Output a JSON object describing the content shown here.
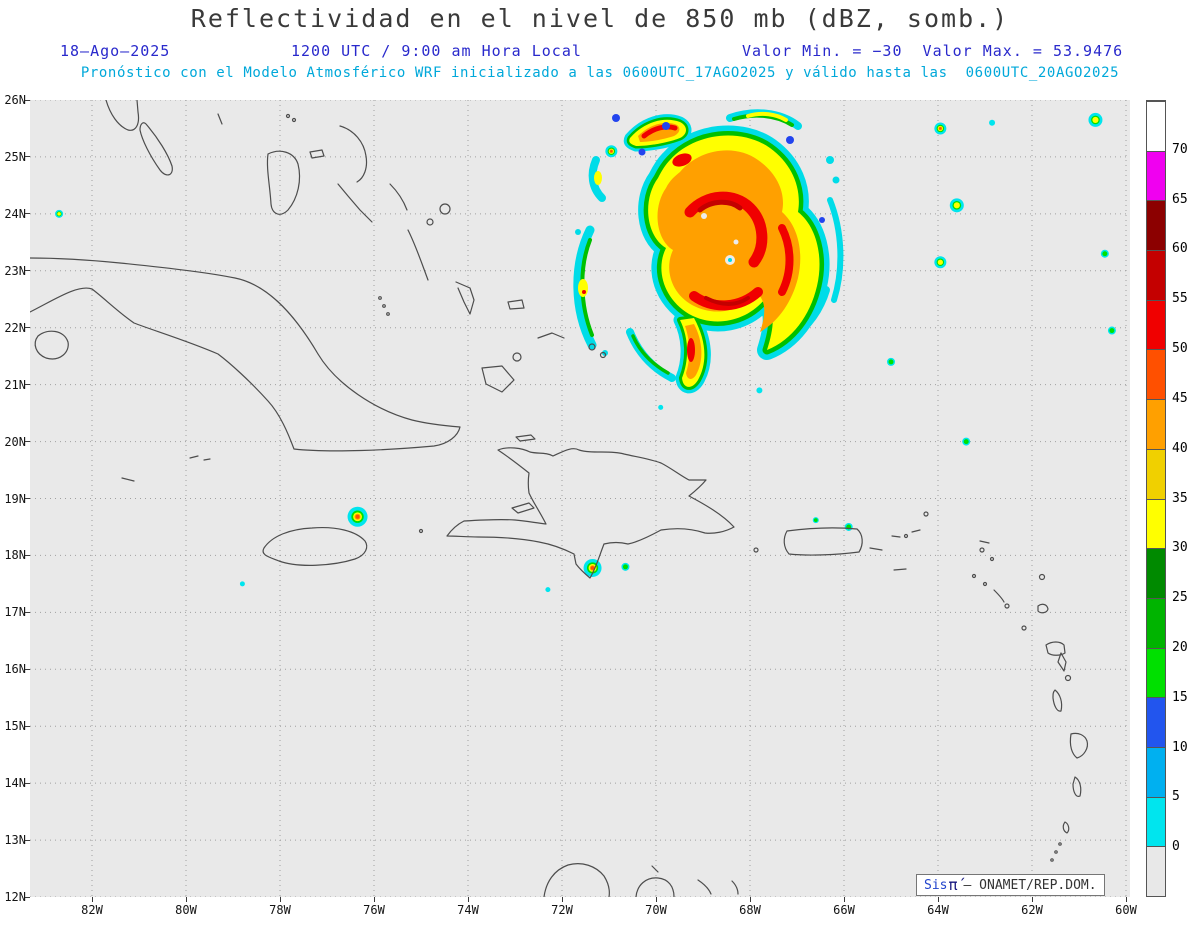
{
  "title": "Reflectividad en el nivel de 850 mb (dBZ, somb.)",
  "header": {
    "date": "18–Ago–2025",
    "time_label": "1200 UTC / 9:00 am Hora Local",
    "minmax_label": "Valor Min. = −30  Valor Max. = 53.9476",
    "forecast_label": "Pronóstico con el Modelo Atmosférico WRF inicializado a las 0600UTC_17AGO2025 y válido hasta las  0600UTC_20AGO2025"
  },
  "branding": {
    "brand": "Sis",
    "symbol": "π́",
    "org": "— ONAMET/REP.DOM."
  },
  "colors": {
    "header_blue": "#2929cc",
    "header_cyan": "#00a8da",
    "title_gray": "#3a3a3a",
    "map_background": "#e9e9e9",
    "grid": "#a0a0a0",
    "coastline": "#4d4d4d"
  },
  "chart_data": {
    "type": "heatmap",
    "title": "Reflectividad en el nivel de 850 mb (dBZ, somb.)",
    "units": "dBZ",
    "level_mb": 850,
    "model": "WRF",
    "valid_date": "18-Ago-2025",
    "valid_time": "1200 UTC / 9:00 am Hora Local",
    "init_time": "0600UTC_17AGO2025",
    "valid_until": "0600UTC_20AGO2025",
    "value_min": -30,
    "value_max": 53.9476,
    "lat_range": [
      12,
      26
    ],
    "lon_range_w": [
      83.3,
      59.9
    ],
    "lat_ticks": [
      "26N",
      "25N",
      "24N",
      "23N",
      "22N",
      "21N",
      "20N",
      "19N",
      "18N",
      "17N",
      "16N",
      "15N",
      "14N",
      "13N",
      "12N"
    ],
    "lon_ticks": [
      "82W",
      "80W",
      "78W",
      "76W",
      "74W",
      "72W",
      "70W",
      "68W",
      "66W",
      "64W",
      "62W",
      "60W"
    ],
    "colorbar": {
      "labels": [
        0,
        5,
        10,
        15,
        20,
        25,
        30,
        35,
        40,
        45,
        50,
        55,
        60,
        65,
        70
      ],
      "segment_colors_bottom_to_top": [
        "#e8e8e8",
        "#00e5ee",
        "#00b0f0",
        "#2255ee",
        "#00e000",
        "#00b400",
        "#008a00",
        "#ffff00",
        "#f0d000",
        "#ffa000",
        "#ff5000",
        "#f00000",
        "#c40000",
        "#8c0000",
        "#f000f0",
        "#ffffff"
      ]
    },
    "features": {
      "storm": {
        "name": "tropical-cyclone",
        "center_lat": 23.4,
        "center_lon_w": 68.6,
        "max_dbz": 53.9476
      },
      "cells": [
        {
          "lon_w": 76.35,
          "lat": 18.68,
          "r": 10,
          "max_dbz": 50
        },
        {
          "lon_w": 71.35,
          "lat": 17.78,
          "r": 9,
          "max_dbz": 50
        },
        {
          "lon_w": 70.65,
          "lat": 17.8,
          "r": 4,
          "max_dbz": 20
        },
        {
          "lon_w": 66.6,
          "lat": 18.62,
          "r": 3,
          "max_dbz": 20
        },
        {
          "lon_w": 65.9,
          "lat": 18.5,
          "r": 4,
          "max_dbz": 25
        },
        {
          "lon_w": 63.95,
          "lat": 25.5,
          "r": 6,
          "max_dbz": 50
        },
        {
          "lon_w": 63.6,
          "lat": 24.15,
          "r": 7,
          "max_dbz": 40
        },
        {
          "lon_w": 63.95,
          "lat": 23.15,
          "r": 6,
          "max_dbz": 35
        },
        {
          "lon_w": 60.65,
          "lat": 25.65,
          "r": 7,
          "max_dbz": 40
        },
        {
          "lon_w": 60.45,
          "lat": 23.3,
          "r": 4,
          "max_dbz": 20
        },
        {
          "lon_w": 60.3,
          "lat": 21.95,
          "r": 4,
          "max_dbz": 25
        },
        {
          "lon_w": 63.4,
          "lat": 20.0,
          "r": 4,
          "max_dbz": 20
        },
        {
          "lon_w": 65.0,
          "lat": 21.4,
          "r": 4,
          "max_dbz": 30
        },
        {
          "lon_w": 82.7,
          "lat": 24.0,
          "r": 4,
          "max_dbz": 35
        },
        {
          "lon_w": 78.8,
          "lat": 17.5,
          "r": 2.5,
          "max_dbz": 5
        },
        {
          "lon_w": 72.3,
          "lat": 17.4,
          "r": 2.5,
          "max_dbz": 5
        },
        {
          "lon_w": 70.95,
          "lat": 25.1,
          "r": 6,
          "max_dbz": 50
        },
        {
          "lon_w": 62.85,
          "lat": 25.6,
          "r": 3,
          "max_dbz": 10
        },
        {
          "lon_w": 67.8,
          "lat": 20.9,
          "r": 3,
          "max_dbz": 15
        },
        {
          "lon_w": 69.9,
          "lat": 20.6,
          "r": 2.5,
          "max_dbz": 5
        }
      ]
    }
  }
}
